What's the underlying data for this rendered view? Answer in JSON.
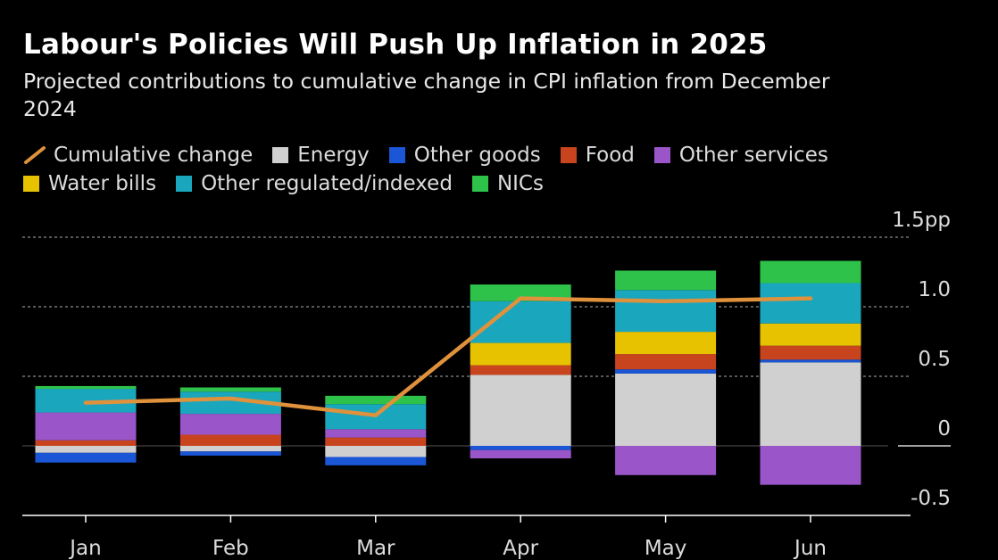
{
  "title": "Labour's Policies Will Push Up Inflation in 2025",
  "subtitle": "Projected contributions to cumulative change in CPI inflation from December 2024",
  "legend": [
    {
      "label": "Cumulative change",
      "kind": "line",
      "color": "#e0913c"
    },
    {
      "label": "Energy",
      "kind": "box",
      "color": "#d0d0d0"
    },
    {
      "label": "Other goods",
      "kind": "box",
      "color": "#1a56d6"
    },
    {
      "label": "Food",
      "kind": "box",
      "color": "#c8441f"
    },
    {
      "label": "Other services",
      "kind": "box",
      "color": "#9a55c9"
    },
    {
      "label": "Water bills",
      "kind": "box",
      "color": "#e6c200"
    },
    {
      "label": "Other regulated/indexed",
      "kind": "box",
      "color": "#1aa6bd"
    },
    {
      "label": "NICs",
      "kind": "box",
      "color": "#2fc24a"
    }
  ],
  "chart_data": {
    "type": "bar",
    "stacked": true,
    "categories": [
      "Jan",
      "Feb",
      "Mar",
      "Apr",
      "May",
      "Jun"
    ],
    "y_ticks": [
      {
        "value": 1.5,
        "label": "1.5pp"
      },
      {
        "value": 1.0,
        "label": "1.0"
      },
      {
        "value": 0.5,
        "label": "0.5"
      },
      {
        "value": 0,
        "label": "0"
      },
      {
        "value": -0.5,
        "label": "-0.5"
      }
    ],
    "ylim": [
      -0.5,
      1.5
    ],
    "series": [
      {
        "name": "Energy",
        "color": "#d0d0d0",
        "values": [
          -0.05,
          -0.04,
          -0.08,
          0.51,
          0.52,
          0.6
        ]
      },
      {
        "name": "Other goods",
        "color": "#1a56d6",
        "values": [
          -0.07,
          -0.03,
          -0.06,
          -0.03,
          0.03,
          0.02
        ]
      },
      {
        "name": "Food",
        "color": "#c8441f",
        "values": [
          0.04,
          0.08,
          0.06,
          0.07,
          0.11,
          0.1
        ]
      },
      {
        "name": "Other services",
        "color": "#9a55c9",
        "values": [
          0.2,
          0.15,
          0.06,
          -0.06,
          -0.21,
          -0.28
        ]
      },
      {
        "name": "Water bills",
        "color": "#e6c200",
        "values": [
          0,
          0,
          0,
          0.16,
          0.16,
          0.16
        ]
      },
      {
        "name": "Other regulated/indexed",
        "color": "#1aa6bd",
        "values": [
          0.17,
          0.16,
          0.18,
          0.3,
          0.3,
          0.29
        ]
      },
      {
        "name": "NICs",
        "color": "#2fc24a",
        "values": [
          0.02,
          0.03,
          0.06,
          0.12,
          0.14,
          0.16
        ]
      }
    ],
    "line_series": {
      "name": "Cumulative change",
      "color": "#e0913c",
      "values": [
        0.31,
        0.34,
        0.22,
        1.06,
        1.04,
        1.06
      ]
    }
  }
}
